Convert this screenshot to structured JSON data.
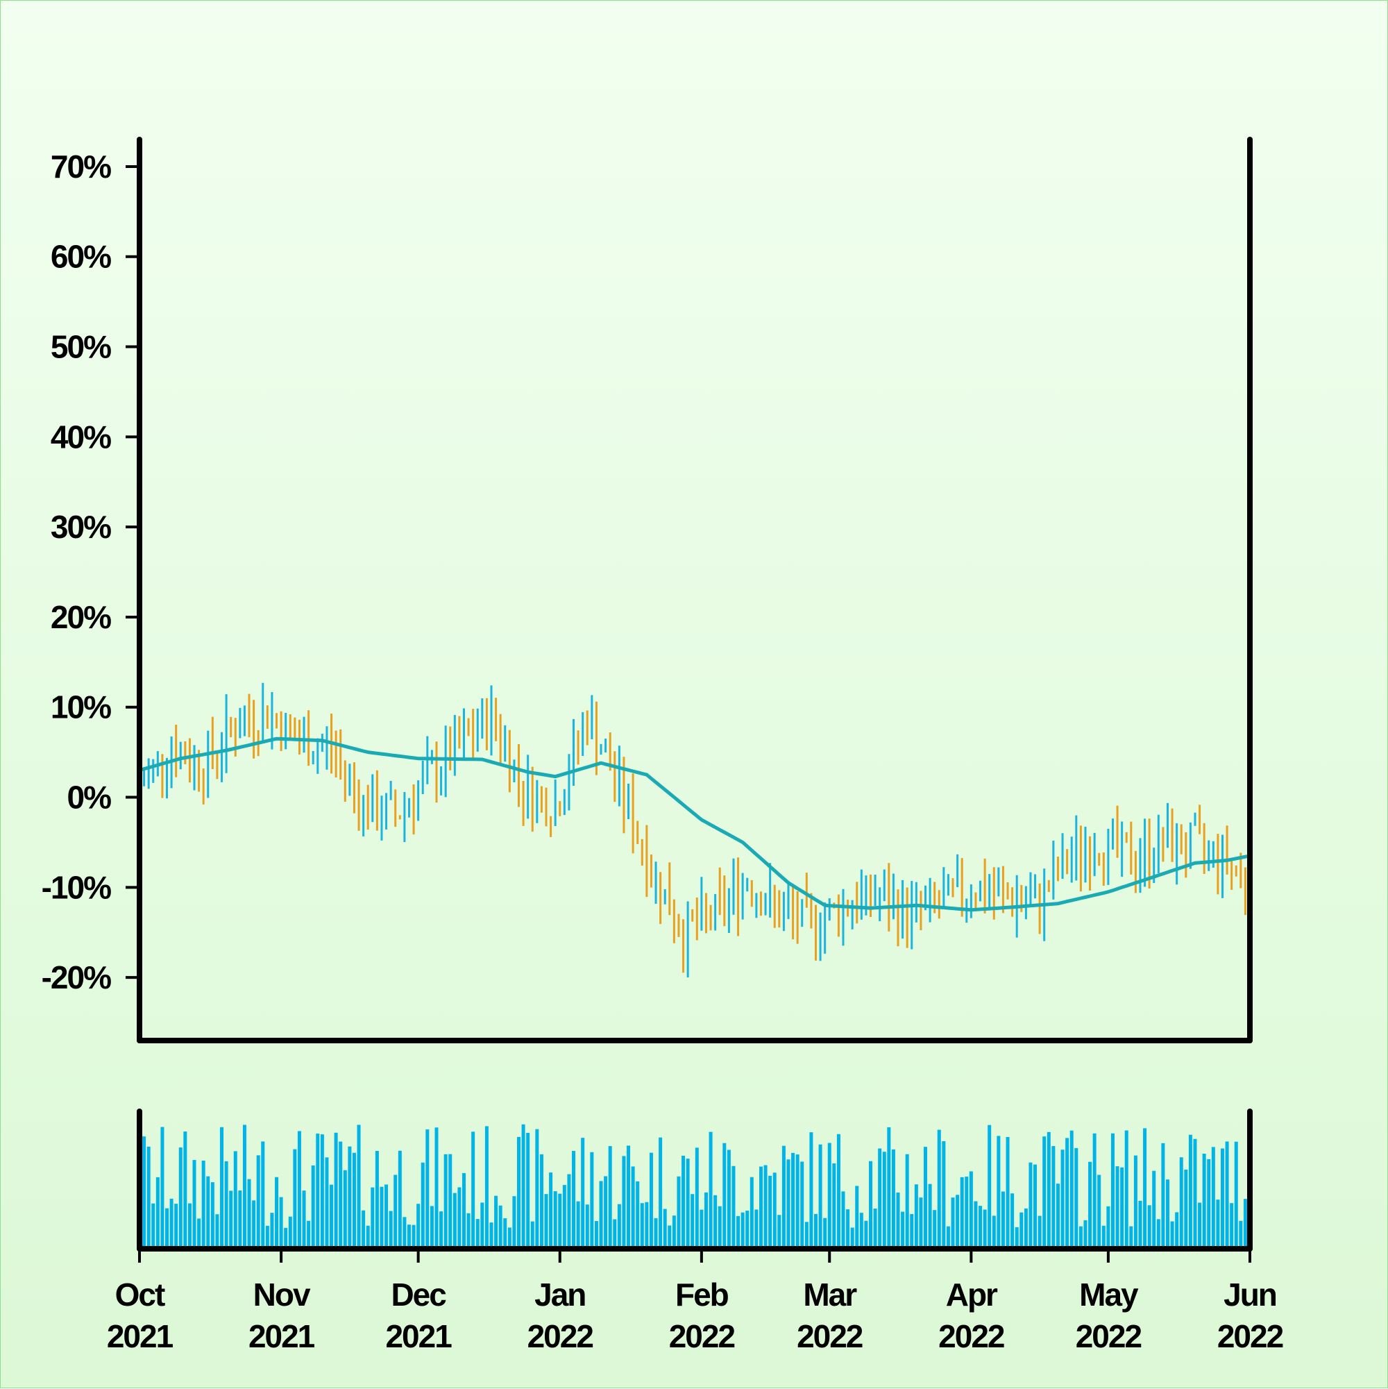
{
  "chart_data": {
    "type": "ohlc-percent-change-with-volume",
    "x_axis": {
      "tick_labels": [
        {
          "month": "Oct",
          "year": "2021",
          "date": "2021-10-01"
        },
        {
          "month": "Nov",
          "year": "2021",
          "date": "2021-11-01"
        },
        {
          "month": "Dec",
          "year": "2021",
          "date": "2021-12-01"
        },
        {
          "month": "Jan",
          "year": "2022",
          "date": "2022-01-01"
        },
        {
          "month": "Feb",
          "year": "2022",
          "date": "2022-02-01"
        },
        {
          "month": "Mar",
          "year": "2022",
          "date": "2022-03-01"
        },
        {
          "month": "Apr",
          "year": "2022",
          "date": "2022-04-01"
        },
        {
          "month": "May",
          "year": "2022",
          "date": "2022-05-01"
        },
        {
          "month": "Jun",
          "year": "2022",
          "date": "2022-06-01"
        }
      ],
      "range": [
        "2021-10-01",
        "2022-06-01"
      ]
    },
    "y_axis": {
      "tick_labels": [
        "70%",
        "60%",
        "50%",
        "40%",
        "30%",
        "20%",
        "10%",
        "0%",
        "-10%",
        "-20%"
      ],
      "tick_values": [
        70,
        60,
        50,
        40,
        30,
        20,
        10,
        0,
        -10,
        -20
      ],
      "range": [
        -27,
        73
      ],
      "unit": "%"
    },
    "colors": {
      "up": "#1ab4dc",
      "down": "#e8a020",
      "moving_average": "#19aab4",
      "volume": "#00b4e8",
      "axis": "#000000"
    },
    "series_ohlc_close_percent": {
      "description_points": [
        [
          "2021-10-01",
          1.5
        ],
        [
          "2021-10-08",
          5.5
        ],
        [
          "2021-10-15",
          3.5
        ],
        [
          "2021-10-22",
          8.0
        ],
        [
          "2021-10-29",
          9.5
        ],
        [
          "2021-11-05",
          6.0
        ],
        [
          "2021-11-12",
          5.5
        ],
        [
          "2021-11-19",
          -1.0
        ],
        [
          "2021-11-26",
          -2.0
        ],
        [
          "2021-12-03",
          2.0
        ],
        [
          "2021-12-10",
          5.5
        ],
        [
          "2021-12-17",
          9.0
        ],
        [
          "2021-12-24",
          1.0
        ],
        [
          "2021-12-31",
          -1.0
        ],
        [
          "2022-01-07",
          9.0
        ],
        [
          "2022-01-14",
          1.0
        ],
        [
          "2022-01-21",
          -8.0
        ],
        [
          "2022-01-28",
          -15.0
        ],
        [
          "2022-02-04",
          -13.0
        ],
        [
          "2022-02-11",
          -9.0
        ],
        [
          "2022-02-18",
          -13.0
        ],
        [
          "2022-02-25",
          -14.0
        ],
        [
          "2022-03-04",
          -12.0
        ],
        [
          "2022-03-11",
          -11.0
        ],
        [
          "2022-03-18",
          -13.0
        ],
        [
          "2022-03-25",
          -12.0
        ],
        [
          "2022-04-01",
          -10.0
        ],
        [
          "2022-04-08",
          -11.0
        ],
        [
          "2022-04-15",
          -12.0
        ],
        [
          "2022-04-22",
          -7.0
        ],
        [
          "2022-04-29",
          -5.0
        ],
        [
          "2022-05-06",
          -7.0
        ],
        [
          "2022-05-13",
          -5.0
        ],
        [
          "2022-05-20",
          -5.5
        ],
        [
          "2022-05-27",
          -7.0
        ],
        [
          "2022-06-01",
          -10.0
        ]
      ]
    },
    "series_moving_average_percent": [
      [
        "2021-10-01",
        3.0
      ],
      [
        "2021-10-10",
        4.3
      ],
      [
        "2021-10-20",
        5.2
      ],
      [
        "2021-10-31",
        6.5
      ],
      [
        "2021-11-10",
        6.3
      ],
      [
        "2021-11-20",
        5.0
      ],
      [
        "2021-12-01",
        4.3
      ],
      [
        "2021-12-15",
        4.2
      ],
      [
        "2021-12-25",
        2.8
      ],
      [
        "2021-12-31",
        2.3
      ],
      [
        "2022-01-10",
        3.8
      ],
      [
        "2022-01-20",
        2.5
      ],
      [
        "2022-02-01",
        -2.5
      ],
      [
        "2022-02-10",
        -5.0
      ],
      [
        "2022-02-20",
        -9.5
      ],
      [
        "2022-02-28",
        -12.0
      ],
      [
        "2022-03-10",
        -12.3
      ],
      [
        "2022-03-20",
        -12.0
      ],
      [
        "2022-04-01",
        -12.5
      ],
      [
        "2022-04-10",
        -12.2
      ],
      [
        "2022-04-20",
        -11.8
      ],
      [
        "2022-05-01",
        -10.5
      ],
      [
        "2022-05-10",
        -9.0
      ],
      [
        "2022-05-20",
        -7.3
      ],
      [
        "2022-05-27",
        -7.0
      ],
      [
        "2022-06-01",
        -6.5
      ]
    ],
    "volume_panel": {
      "y_tick_labels": [],
      "relative_range": [
        0,
        1
      ]
    }
  }
}
